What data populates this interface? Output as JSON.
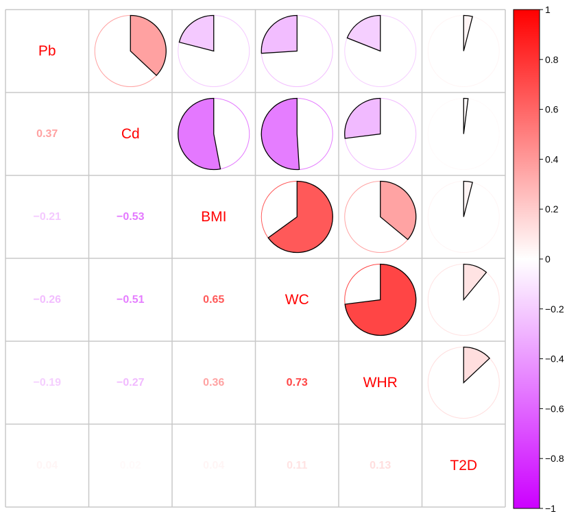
{
  "chart_data": {
    "type": "heatmap",
    "title": "",
    "variables": [
      "Pb",
      "Cd",
      "BMI",
      "WC",
      "WHR",
      "T2D"
    ],
    "correlations": [
      [
        1.0,
        0.37,
        -0.21,
        -0.26,
        -0.19,
        0.04
      ],
      [
        0.37,
        1.0,
        -0.53,
        -0.51,
        -0.27,
        0.02
      ],
      [
        -0.21,
        -0.53,
        1.0,
        0.65,
        0.36,
        0.04
      ],
      [
        -0.26,
        -0.51,
        0.65,
        1.0,
        0.73,
        0.11
      ],
      [
        -0.19,
        -0.27,
        0.36,
        0.73,
        1.0,
        0.13
      ],
      [
        0.04,
        0.02,
        0.04,
        0.11,
        0.13,
        1.0
      ]
    ],
    "lower_triangle": "numbers",
    "upper_triangle": "pie",
    "diagonal": "variable names",
    "colorbar": {
      "range": [
        -1,
        1
      ],
      "ticks": [
        1,
        0.8,
        0.6,
        0.4,
        0.2,
        0,
        -0.2,
        -0.4,
        -0.6,
        -0.8,
        -1
      ],
      "tick_labels": [
        "1",
        "0.8",
        "0.6",
        "0.4",
        "0.2",
        "0",
        "−0.2",
        "−0.4",
        "−0.6",
        "−0.8",
        "−1"
      ],
      "colors": {
        "positive": "#ff0000",
        "zero": "#ffffff",
        "negative": "#cc00ff"
      },
      "placement": "right"
    },
    "grid_color": "#c8c8c8",
    "diagonal_label_color": "#ff0000"
  }
}
